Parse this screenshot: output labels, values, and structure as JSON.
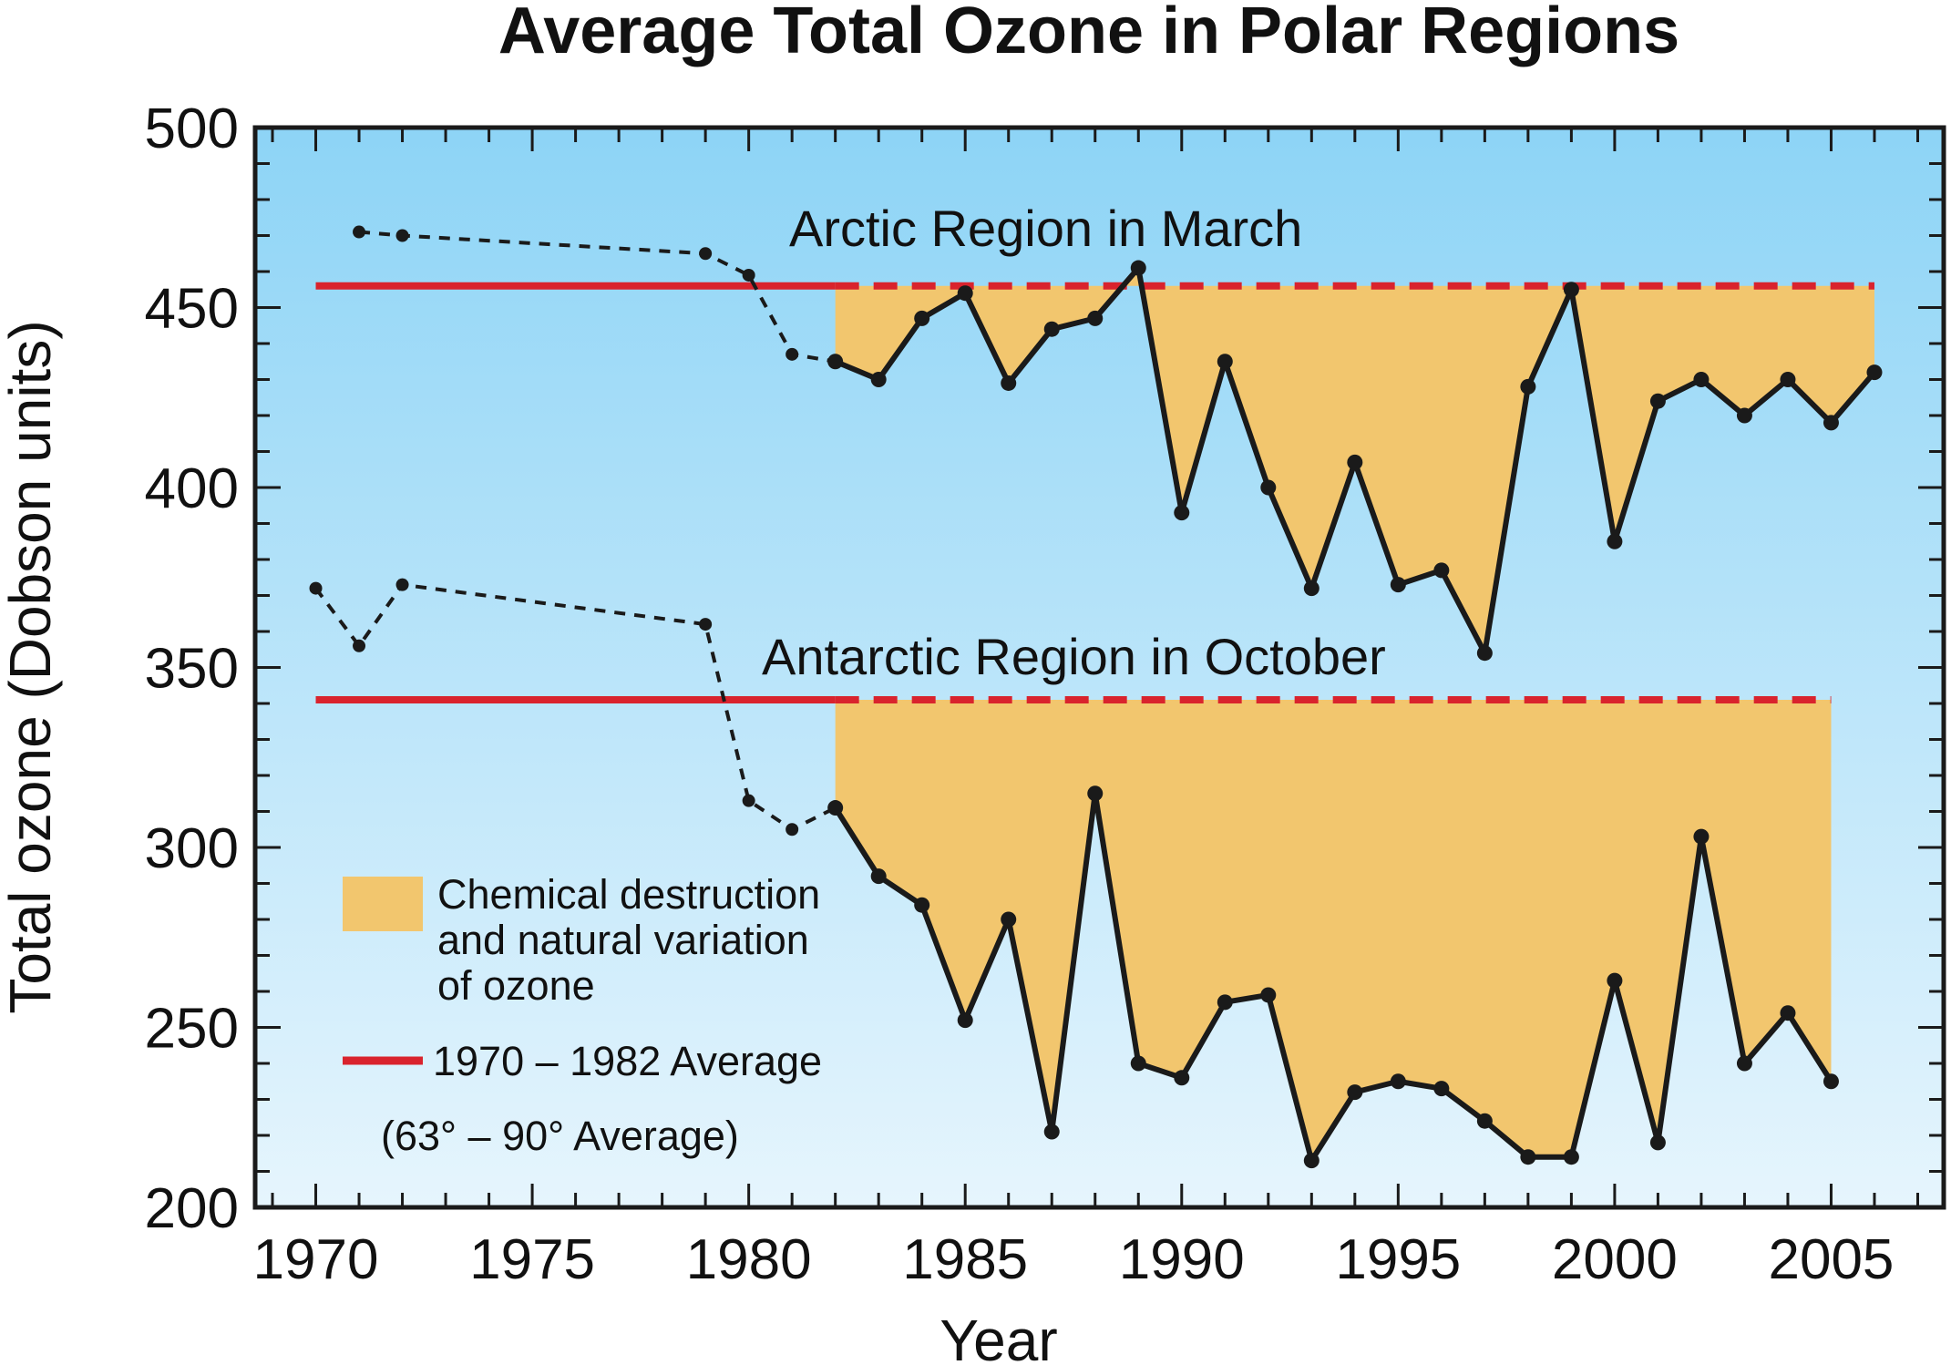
{
  "chart_data": {
    "type": "line",
    "title": "Average Total Ozone in Polar Regions",
    "xlabel": "Year",
    "ylabel": "Total ozone (Dobson units)",
    "xlim": [
      1968.6,
      2007.6
    ],
    "ylim": [
      200,
      500
    ],
    "x_ticks": [
      1970,
      1975,
      1980,
      1985,
      1990,
      1995,
      2000,
      2005
    ],
    "y_ticks": [
      200,
      250,
      300,
      350,
      400,
      450,
      500
    ],
    "grid": false,
    "background": {
      "top": "#8DD4F6",
      "bottom": "#E6F5FD"
    },
    "colors": {
      "fill": "#F2C66E",
      "average": "#D9232D",
      "line": "#1A1A1A"
    },
    "series": [
      {
        "name": "Arctic Region in March",
        "x": [
          1971,
          1972,
          1979,
          1980,
          1981,
          1982,
          1983,
          1984,
          1985,
          1986,
          1987,
          1988,
          1989,
          1990,
          1991,
          1992,
          1993,
          1994,
          1995,
          1996,
          1997,
          1998,
          1999,
          2000,
          2001,
          2002,
          2003,
          2004,
          2005,
          2006
        ],
        "values": [
          471,
          470,
          465,
          459,
          437,
          435,
          430,
          447,
          454,
          429,
          444,
          447,
          461,
          393,
          435,
          400,
          372,
          407,
          373,
          377,
          354,
          428,
          455,
          385,
          424,
          430,
          420,
          430,
          418,
          432
        ],
        "average": 456,
        "dashed_until": 1982
      },
      {
        "name": "Antarctic Region in October",
        "x": [
          1970,
          1971,
          1972,
          1979,
          1980,
          1981,
          1982,
          1983,
          1984,
          1985,
          1986,
          1987,
          1988,
          1989,
          1990,
          1991,
          1992,
          1993,
          1994,
          1995,
          1996,
          1997,
          1998,
          1999,
          2000,
          2001,
          2002,
          2003,
          2004,
          2005
        ],
        "values": [
          372,
          356,
          373,
          362,
          313,
          305,
          311,
          292,
          284,
          252,
          280,
          221,
          315,
          240,
          236,
          257,
          259,
          213,
          232,
          235,
          233,
          224,
          214,
          214,
          263,
          218,
          303,
          240,
          254,
          235
        ],
        "average": 341,
        "dashed_until": 1982
      }
    ],
    "legend": {
      "fill_label_lines": [
        "Chemical destruction",
        "and natural variation",
        "of ozone"
      ],
      "average_label": "1970 – 1982 Average",
      "note": "(63° – 90° Average)"
    }
  }
}
